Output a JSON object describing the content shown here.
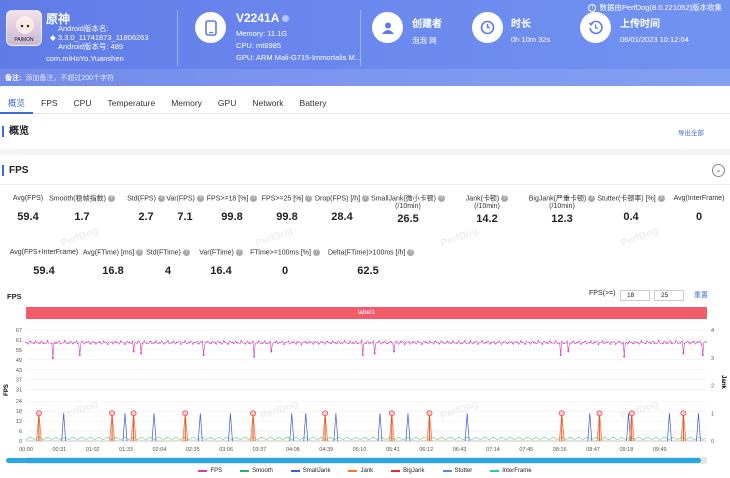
{
  "source": "数据由PerfDog(8.0.221052)版本收集",
  "app": {
    "name": "原神",
    "android_version_line1": "Android版本名:",
    "android_version_line2": "3.3.0_11741873_11806263",
    "android_version_line3": "Android版本号: 489",
    "package": "com.miHoYo.Yuanshen",
    "icon_caption": "PAIMON"
  },
  "device": {
    "name": "V2241A",
    "memory": "Memory: 11.1G",
    "cpu": "CPU: mt6985",
    "gpu": "GPU: ARM Mali-G715-Immortalis M..."
  },
  "creator": {
    "label": "创建者",
    "value": "泡泡 网"
  },
  "duration": {
    "label": "时长",
    "value": "0h 10m 32s"
  },
  "upload": {
    "label": "上传时间",
    "value": "06/01/2023 10:12:04"
  },
  "note": {
    "label": "备注:",
    "placeholder": "添加备注，不超过200个字符"
  },
  "tabs": [
    "概览",
    "FPS",
    "CPU",
    "Temperature",
    "Memory",
    "GPU",
    "Network",
    "Battery"
  ],
  "overview": {
    "title": "概览",
    "export": "导出全部"
  },
  "fps_section": {
    "title": "FPS",
    "row1": [
      {
        "label": "Avg(FPS)",
        "value": "59.4"
      },
      {
        "label": "Smooth(稳帧指数)",
        "value": "1.7"
      },
      {
        "label": "Std(FPS)",
        "value": "2.7"
      },
      {
        "label": "Var(FPS)",
        "value": "7.1"
      },
      {
        "label": "FPS>=18 [%]",
        "value": "99.8"
      },
      {
        "label": "FPS>=25 [%]",
        "value": "99.8"
      },
      {
        "label": "Drop(FPS) [/h]",
        "value": "28.4"
      },
      {
        "label": "SmallJank(微小卡顿)",
        "label2": "(/10min)",
        "value": "26.5"
      },
      {
        "label": "Jank(卡顿)",
        "label2": "(/10min)",
        "value": "14.2"
      },
      {
        "label": "BigJank(严重卡顿)",
        "label2": "(/10min)",
        "value": "12.3"
      },
      {
        "label": "Stutter(卡顿率) [%]",
        "value": "0.4"
      },
      {
        "label": "Avg(InterFrame)",
        "value": "0"
      }
    ],
    "row2": [
      {
        "label": "Avg(FPS+InterFrame)",
        "value": "59.4"
      },
      {
        "label": "Avg(FTime) [ms]",
        "value": "16.8"
      },
      {
        "label": "Std(FTime)",
        "value": "4"
      },
      {
        "label": "Var(FTime)",
        "value": "16.4"
      },
      {
        "label": "FTime>=100ms [%]",
        "value": "0"
      },
      {
        "label": "Delta(FTime)>100ms [/h]",
        "value": "62.5"
      }
    ]
  },
  "chart_controls": {
    "title": "FPS",
    "threshold_label": "FPS(>=)",
    "threshold1": "18",
    "threshold2": "25",
    "reset": "重置",
    "label_bar": "label1",
    "y_label_left": "FPS",
    "y_label_right": "Jank"
  },
  "watermark": "PerfDog",
  "colors": {
    "header": "#6682ea",
    "fps": "#cc3fbf",
    "smooth": "#2fb35a",
    "smalljank": "#3f5bd6",
    "jank": "#f07a2a",
    "bigjank": "#e8282a",
    "stutter": "#4a90e2",
    "interframe": "#1fc8c8",
    "label_bar": "#f25c6a"
  },
  "chart_data": {
    "type": "line",
    "x_ticks": [
      "00:00",
      "00:31",
      "01:02",
      "01:33",
      "02:04",
      "02:35",
      "03:06",
      "03:37",
      "04:08",
      "04:39",
      "05:10",
      "05:41",
      "06:12",
      "06:43",
      "07:14",
      "07:45",
      "08:16",
      "08:47",
      "09:18",
      "09:49"
    ],
    "y_ticks_left": [
      0,
      6,
      12,
      18,
      24,
      31,
      37,
      43,
      49,
      55,
      61,
      67
    ],
    "y_ticks_right": [
      0,
      1,
      2,
      3,
      4
    ],
    "ylim_left": [
      0,
      67
    ],
    "ylim_right": [
      0,
      4
    ],
    "fps_baseline": 59.4,
    "fps_dips_sec": [
      [
        25,
        50
      ],
      [
        50,
        52
      ],
      [
        100,
        54
      ],
      [
        107,
        53
      ],
      [
        165,
        52
      ],
      [
        212,
        51
      ],
      [
        228,
        54
      ],
      [
        313,
        52
      ],
      [
        324,
        53
      ],
      [
        342,
        54
      ],
      [
        497,
        52
      ],
      [
        504,
        54
      ],
      [
        556,
        51
      ],
      [
        611,
        53
      ],
      [
        629,
        52
      ]
    ],
    "bigjank_sec": [
      12,
      80,
      100,
      148,
      211,
      278,
      340,
      375,
      498,
      533,
      563,
      611
    ],
    "jank_sec": [
      12,
      80,
      100,
      148,
      211,
      278,
      340,
      375,
      498,
      533,
      563,
      611
    ],
    "smalljank_sec": [
      35,
      92,
      119,
      162,
      190,
      247,
      260,
      288,
      329,
      355,
      410,
      524,
      560,
      598,
      625
    ],
    "series": [
      {
        "name": "FPS"
      },
      {
        "name": "Smooth"
      },
      {
        "name": "SmallJank"
      },
      {
        "name": "Jank"
      },
      {
        "name": "BigJank"
      },
      {
        "name": "Stutter"
      },
      {
        "name": "InterFrame"
      }
    ],
    "duration_sec": 632
  }
}
